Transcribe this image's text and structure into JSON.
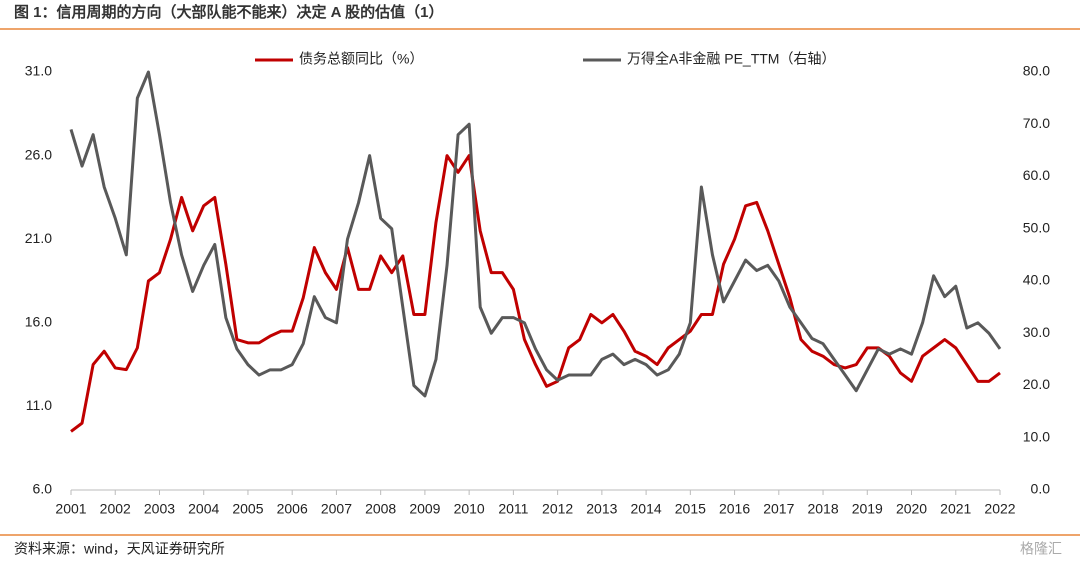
{
  "chart_data": {
    "type": "line",
    "title": "图 1：信用周期的方向（大部队能不能来）决定 A 股的估值（1）",
    "source": "资料来源：wind，天风证券研究所",
    "watermark": "格隆汇",
    "x": [
      2001,
      2001.25,
      2001.5,
      2001.75,
      2002,
      2002.25,
      2002.5,
      2002.75,
      2003,
      2003.25,
      2003.5,
      2003.75,
      2004,
      2004.25,
      2004.5,
      2004.75,
      2005,
      2005.25,
      2005.5,
      2005.75,
      2006,
      2006.25,
      2006.5,
      2006.75,
      2007,
      2007.25,
      2007.5,
      2007.75,
      2008,
      2008.25,
      2008.5,
      2008.75,
      2009,
      2009.25,
      2009.5,
      2009.75,
      2010,
      2010.25,
      2010.5,
      2010.75,
      2011,
      2011.25,
      2011.5,
      2011.75,
      2012,
      2012.25,
      2012.5,
      2012.75,
      2013,
      2013.25,
      2013.5,
      2013.75,
      2014,
      2014.25,
      2014.5,
      2014.75,
      2015,
      2015.25,
      2015.5,
      2015.75,
      2016,
      2016.25,
      2016.5,
      2016.75,
      2017,
      2017.25,
      2017.5,
      2017.75,
      2018,
      2018.25,
      2018.5,
      2018.75,
      2019,
      2019.25,
      2019.5,
      2019.75,
      2020,
      2020.25,
      2020.5,
      2020.75,
      2021,
      2021.25,
      2021.5,
      2021.75,
      2022
    ],
    "xlim": [
      2001,
      2022
    ],
    "xticks": [
      2001,
      2002,
      2003,
      2004,
      2005,
      2006,
      2007,
      2008,
      2009,
      2010,
      2011,
      2012,
      2013,
      2014,
      2015,
      2016,
      2017,
      2018,
      2019,
      2020,
      2021,
      2022
    ],
    "ylim": [
      6,
      31
    ],
    "yticks": [
      {
        "value": 6,
        "label": "6.0"
      },
      {
        "value": 11,
        "label": "11.0"
      },
      {
        "value": 16,
        "label": "16.0"
      },
      {
        "value": 21,
        "label": "21.0"
      },
      {
        "value": 26,
        "label": "26.0"
      },
      {
        "value": 31,
        "label": "31.0"
      }
    ],
    "y2lim": [
      0,
      80
    ],
    "y2ticks": [
      {
        "value": 0,
        "label": "0.0"
      },
      {
        "value": 10,
        "label": "10.0"
      },
      {
        "value": 20,
        "label": "20.0"
      },
      {
        "value": 30,
        "label": "30.0"
      },
      {
        "value": 40,
        "label": "40.0"
      },
      {
        "value": 50,
        "label": "50.0"
      },
      {
        "value": 60,
        "label": "60.0"
      },
      {
        "value": 70,
        "label": "70.0"
      },
      {
        "value": 80,
        "label": "80.0"
      }
    ],
    "series": [
      {
        "name": "债务总额同比（%）",
        "color": "#c00000",
        "values": [
          9.5,
          10,
          13.5,
          14.3,
          13.3,
          13.2,
          14.5,
          18.5,
          19,
          21,
          23.5,
          21.5,
          23,
          23.5,
          19.5,
          15,
          14.8,
          14.8,
          15.2,
          15.5,
          15.5,
          17.5,
          20.5,
          19,
          18,
          20.5,
          18,
          18,
          20,
          19,
          20,
          16.5,
          16.5,
          22,
          26,
          25,
          26,
          21.5,
          19,
          19,
          18,
          15,
          13.5,
          12.2,
          12.5,
          14.5,
          15,
          16.5,
          16,
          16.5,
          15.5,
          14.3,
          14,
          13.5,
          14.5,
          15,
          15.5,
          16.5,
          16.5,
          19.5,
          21,
          23,
          23.2,
          21.5,
          19.5,
          17.5,
          15,
          14.3,
          14,
          13.5,
          13.3,
          13.5,
          14.5,
          14.5,
          14,
          13,
          12.5,
          14,
          14.5,
          15,
          14.5,
          13.5,
          12.5,
          12.5,
          13
        ]
      },
      {
        "name": "万得全A非金融 PE_TTM（右轴）",
        "color": "#595959",
        "axis": "y2",
        "values": [
          69,
          62,
          68,
          58,
          52,
          45,
          75,
          80,
          68,
          55,
          45,
          38,
          43,
          47,
          33,
          27,
          24,
          22,
          23,
          23,
          24,
          28,
          37,
          33,
          32,
          48,
          55,
          64,
          52,
          50,
          35,
          20,
          18,
          25,
          43,
          68,
          70,
          35,
          30,
          33,
          33,
          32,
          27,
          23,
          21,
          22,
          22,
          22,
          25,
          26,
          24,
          25,
          24,
          22,
          23,
          26,
          32,
          58,
          45,
          36,
          40,
          44,
          42,
          43,
          40,
          35,
          32,
          29,
          28,
          25,
          22,
          19,
          23,
          27,
          26,
          27,
          26,
          32,
          41,
          37,
          39,
          31,
          32,
          30,
          27
        ]
      }
    ]
  }
}
